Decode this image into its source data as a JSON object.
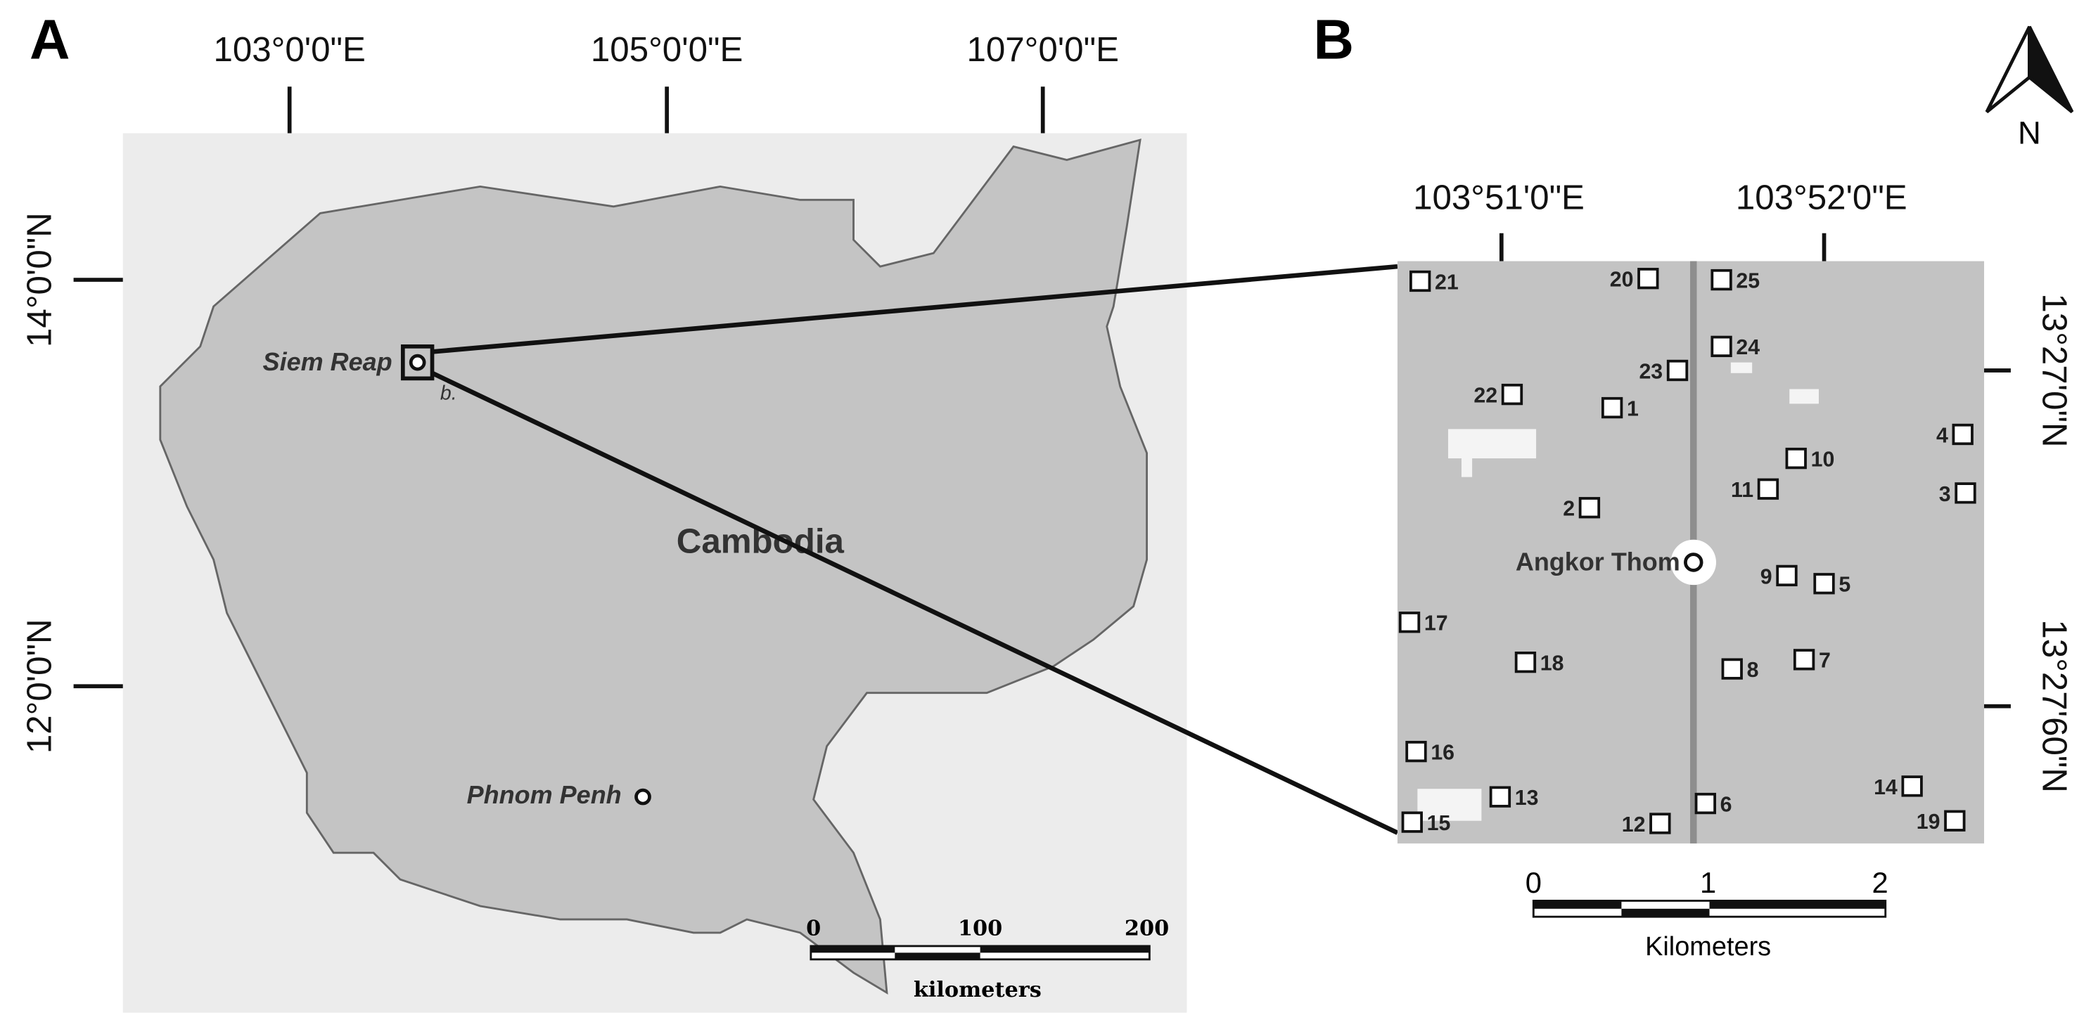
{
  "panel_a": {
    "label": "A",
    "lon_ticks": [
      "103°0'0\"E",
      "105°0'0\"E",
      "107°0'0\"E"
    ],
    "lat_ticks": [
      "14°0'0\"N",
      "12°0'0\"N"
    ],
    "places": {
      "siem_reap": "Siem Reap",
      "inset_marker": "b.",
      "country": "Cambodia",
      "phnom_penh": "Phnom Penh"
    },
    "scale_bar": {
      "labels": [
        "0",
        "100",
        "200"
      ],
      "unit": "kilometers"
    }
  },
  "panel_b": {
    "label": "B",
    "lon_ticks": [
      "103°51'0\"E",
      "103°52'0\"E"
    ],
    "lat_ticks": [
      "13°27'0\"N",
      "13°27'60\"N"
    ],
    "center": "Angkor Thom",
    "sites": [
      "21",
      "20",
      "25",
      "24",
      "23",
      "22",
      "1",
      "4",
      "10",
      "11",
      "3",
      "2",
      "9",
      "5",
      "17",
      "18",
      "8",
      "7",
      "16",
      "13",
      "6",
      "14",
      "15",
      "12",
      "19"
    ],
    "scale_bar": {
      "labels": [
        "0",
        "1",
        "2"
      ],
      "unit": "Kilometers"
    },
    "north": "N"
  }
}
